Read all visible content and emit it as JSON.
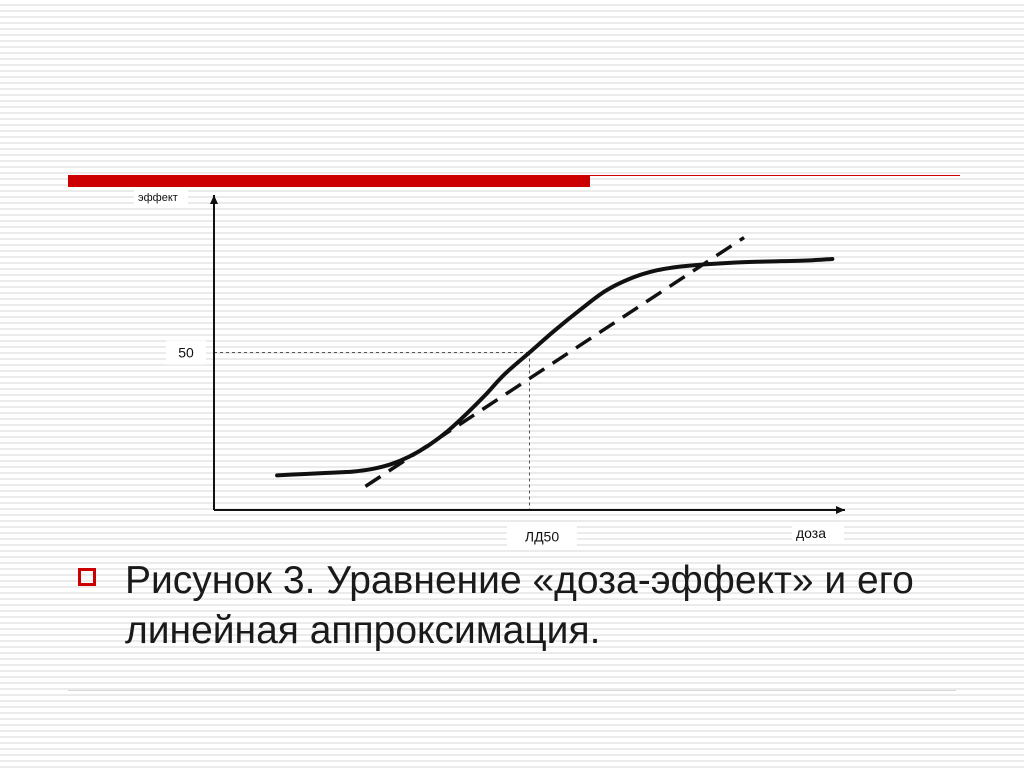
{
  "colors": {
    "accent": "#cc0000",
    "curve": "#111111",
    "axis": "#111111",
    "guide": "#555555"
  },
  "chart_data": {
    "type": "line",
    "xlabel": "доза",
    "ylabel": "эффект",
    "xlim": [
      0,
      100
    ],
    "ylim": [
      0,
      100
    ],
    "grid": false,
    "legend": "none",
    "series": [
      {
        "style": "solid",
        "x": [
          10,
          14,
          18,
          22,
          25,
          28,
          31,
          34,
          37,
          40,
          43,
          46,
          50,
          54,
          58,
          62,
          66,
          70,
          74,
          78,
          82,
          86,
          90,
          94,
          98
        ],
        "y": [
          11,
          11.4,
          11.8,
          12.2,
          13,
          14.5,
          17,
          20.5,
          25,
          30.5,
          36.5,
          43,
          50,
          57,
          63.5,
          69.5,
          73.5,
          76,
          77.3,
          78,
          78.5,
          78.8,
          79,
          79.2,
          79.7
        ]
      },
      {
        "style": "dashed",
        "x": [
          24,
          84
        ],
        "y": [
          7.5,
          86.5
        ]
      }
    ],
    "annotations": {
      "y_tick_label": "50",
      "y_tick_value": 50,
      "x_tick_label": "ЛД50",
      "x_tick_value": 50
    }
  },
  "caption": {
    "text": "Рисунок 3. Уравнение «доза-эффект» и его линейная аппроксимация."
  }
}
